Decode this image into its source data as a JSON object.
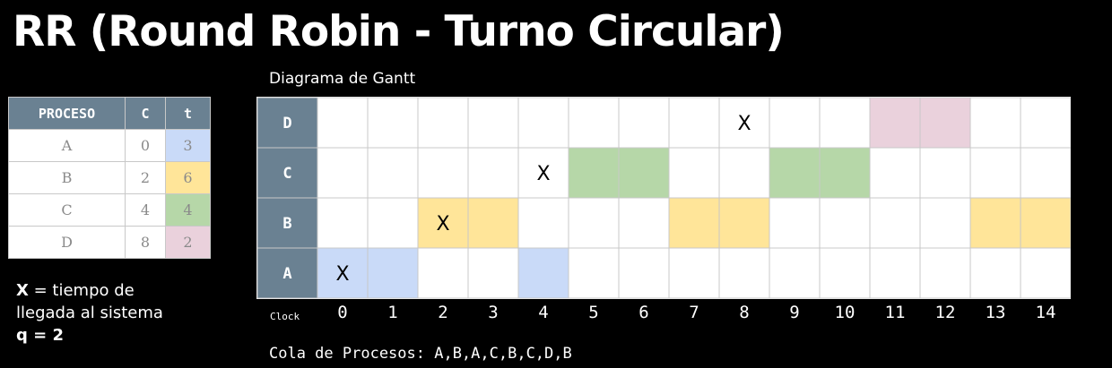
{
  "title": "RR (Round Robin - Turno Circular)",
  "gantt_title": "Diagrama de Gantt",
  "process_table": {
    "headers": [
      "PROCESO",
      "C",
      "t"
    ],
    "rows": [
      {
        "name": "A",
        "c": "0",
        "t": "3",
        "color": "#c9daf8"
      },
      {
        "name": "B",
        "c": "2",
        "t": "6",
        "color": "#ffe599"
      },
      {
        "name": "C",
        "c": "4",
        "t": "4",
        "color": "#b6d7a8"
      },
      {
        "name": "D",
        "c": "8",
        "t": "2",
        "color": "#ead1dc"
      }
    ]
  },
  "legend": {
    "x_symbol": "X",
    "x_text": " = tiempo de",
    "x_text2": "llegada al sistema",
    "quantum": "q = 2"
  },
  "gantt": {
    "rows": [
      "D",
      "C",
      "B",
      "A"
    ],
    "clock_label": "Clock",
    "ticks": [
      "0",
      "1",
      "2",
      "3",
      "4",
      "5",
      "6",
      "7",
      "8",
      "9",
      "10",
      "11",
      "12",
      "13",
      "14"
    ],
    "arrival_mark": "X",
    "arrivals": {
      "A": 0,
      "B": 2,
      "C": 4,
      "D": 8
    },
    "execution": {
      "A": [
        0,
        1,
        4
      ],
      "B": [
        2,
        3,
        7,
        8,
        13,
        14
      ],
      "C": [
        5,
        6,
        9,
        10
      ],
      "D": [
        11,
        12
      ]
    },
    "colors": {
      "A": "#c9daf8",
      "B": "#ffe599",
      "C": "#b6d7a8",
      "D": "#ead1dc"
    },
    "header_color": "#6a8192",
    "grid_color": "#c8c8c8"
  },
  "queue_text": "Cola de Procesos: A,B,A,C,B,C,D,B"
}
